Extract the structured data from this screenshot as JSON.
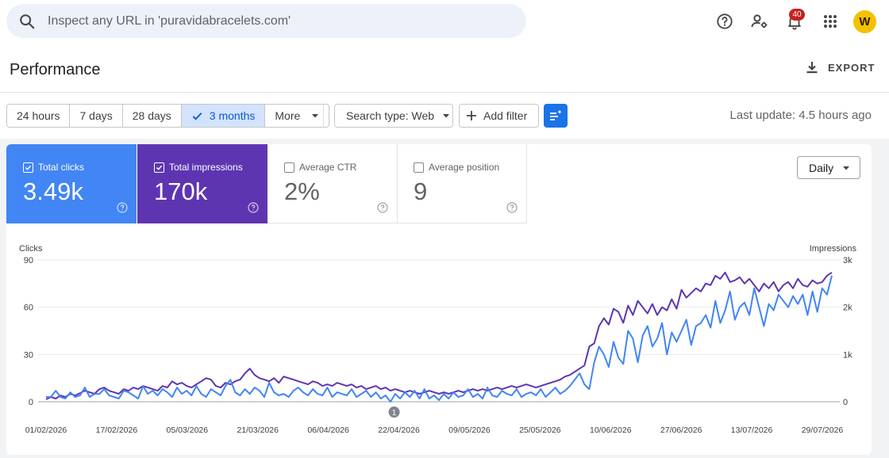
{
  "search": {
    "placeholder": "Inspect any URL in 'puravidabracelets.com'"
  },
  "topbar": {
    "notifications_count": "40",
    "avatar_initial": "W"
  },
  "header": {
    "title": "Performance",
    "export_label": "EXPORT"
  },
  "date_filters": {
    "options": [
      "24 hours",
      "7 days",
      "28 days",
      "3 months",
      "More"
    ],
    "selected": "3 months"
  },
  "filters": {
    "search_type": "Search type: Web",
    "add_filter": "Add filter",
    "last_update": "Last update: 4.5 hours ago"
  },
  "metrics": {
    "clicks": {
      "label": "Total clicks",
      "value": "3.49k",
      "checked": true,
      "color": "#4285f4"
    },
    "impressions": {
      "label": "Total impressions",
      "value": "170k",
      "checked": true,
      "color": "#5e35b1"
    },
    "ctr": {
      "label": "Average CTR",
      "value": "2%",
      "checked": false
    },
    "position": {
      "label": "Average position",
      "value": "9",
      "checked": false
    }
  },
  "granularity": "Daily",
  "chart_data": {
    "type": "line",
    "left_axis": {
      "label": "Clicks",
      "ticks": [
        "90",
        "60",
        "30",
        "0"
      ],
      "range": [
        0,
        90
      ]
    },
    "right_axis": {
      "label": "Impressions",
      "ticks": [
        "3k",
        "2k",
        "1k",
        "0"
      ],
      "range": [
        0,
        3000
      ]
    },
    "x_ticks": [
      "01/02/2026",
      "17/02/2026",
      "05/03/2026",
      "21/03/2026",
      "06/04/2026",
      "22/04/2026",
      "09/05/2026",
      "25/05/2026",
      "10/06/2026",
      "27/06/2026",
      "13/07/2026",
      "29/07/2026"
    ],
    "annotation": {
      "label": "1",
      "date": "22/04/2026"
    },
    "grid": true,
    "series": [
      {
        "name": "Clicks",
        "axis": "left",
        "color": "#4285f4",
        "values": [
          3,
          3,
          7,
          3,
          2,
          6,
          3,
          4,
          9,
          3,
          5,
          5,
          8,
          4,
          3,
          2,
          7,
          6,
          4,
          2,
          10,
          5,
          7,
          4,
          8,
          6,
          3,
          9,
          5,
          7,
          4,
          10,
          5,
          3,
          8,
          6,
          4,
          10,
          14,
          6,
          4,
          8,
          5,
          9,
          7,
          3,
          12,
          6,
          4,
          5,
          3,
          7,
          9,
          6,
          4,
          8,
          5,
          4,
          9,
          3,
          6,
          5,
          4,
          8,
          3,
          5,
          7,
          3,
          6,
          2,
          4,
          0,
          5,
          2,
          6,
          3,
          7,
          2,
          8,
          2,
          4,
          1,
          5,
          2,
          6,
          3,
          4,
          8,
          3,
          5,
          2,
          9,
          4,
          3,
          7,
          5,
          4,
          8,
          3,
          5,
          6,
          4,
          8,
          3,
          6,
          9,
          5,
          7,
          10,
          14,
          18,
          11,
          8,
          25,
          35,
          30,
          22,
          38,
          28,
          24,
          45,
          40,
          25,
          42,
          48,
          35,
          40,
          50,
          30,
          44,
          38,
          45,
          52,
          36,
          48,
          50,
          55,
          47,
          64,
          50,
          58,
          70,
          52,
          60,
          63,
          55,
          72,
          60,
          48,
          62,
          58,
          68,
          64,
          60,
          67,
          62,
          68,
          55,
          70,
          57,
          72,
          68,
          80
        ]
      },
      {
        "name": "Impressions",
        "axis": "right",
        "color": "#5e35b1",
        "values": [
          50,
          100,
          67,
          133,
          100,
          167,
          133,
          183,
          233,
          200,
          167,
          267,
          300,
          233,
          200,
          167,
          267,
          233,
          300,
          267,
          333,
          300,
          267,
          233,
          333,
          300,
          433,
          367,
          400,
          333,
          300,
          367,
          433,
          500,
          467,
          333,
          300,
          400,
          367,
          433,
          467,
          600,
          700,
          567,
          500,
          467,
          433,
          500,
          400,
          533,
          500,
          467,
          433,
          400,
          367,
          433,
          400,
          333,
          367,
          333,
          400,
          367,
          333,
          367,
          300,
          333,
          267,
          300,
          333,
          267,
          300,
          233,
          267,
          233,
          200,
          233,
          200,
          167,
          200,
          233,
          200,
          167,
          200,
          167,
          200,
          233,
          200,
          233,
          267,
          233,
          267,
          233,
          267,
          300,
          267,
          300,
          333,
          300,
          333,
          367,
          333,
          300,
          333,
          367,
          400,
          433,
          467,
          533,
          567,
          633,
          700,
          767,
          1167,
          1233,
          1600,
          1767,
          1633,
          1967,
          1900,
          1667,
          2033,
          1833,
          2133,
          2000,
          1867,
          2067,
          1833,
          2000,
          1933,
          2167,
          1967,
          2367,
          2200,
          2300,
          2400,
          2333,
          2500,
          2467,
          2667,
          2600,
          2733,
          2533,
          2567,
          2633,
          2500,
          2600,
          2467,
          2333,
          2500,
          2400,
          2533,
          2333,
          2467,
          2533,
          2400,
          2600,
          2467,
          2433,
          2567,
          2500,
          2533,
          2667,
          2733
        ]
      }
    ]
  }
}
